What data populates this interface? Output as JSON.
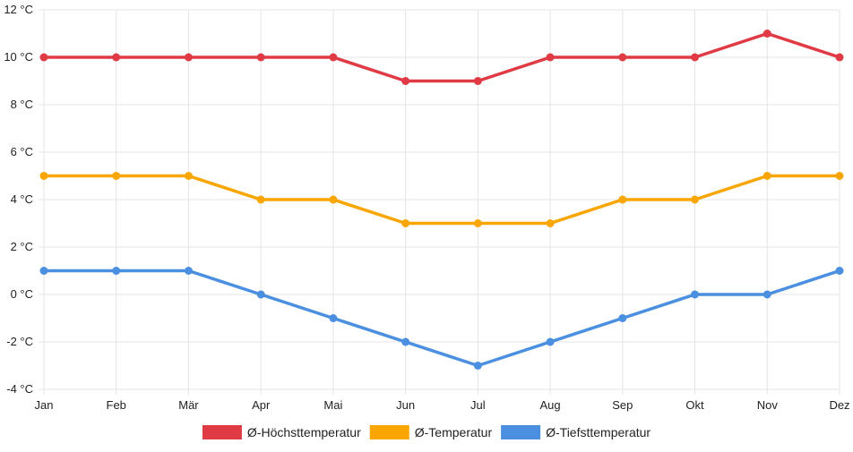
{
  "chart_data": {
    "type": "line",
    "categories": [
      "Jan",
      "Feb",
      "Mär",
      "Apr",
      "Mai",
      "Jun",
      "Jul",
      "Aug",
      "Sep",
      "Okt",
      "Nov",
      "Dez"
    ],
    "y_ticks": [
      "-4 °C",
      "-2 °C",
      "0 °C",
      "2 °C",
      "4 °C",
      "6 °C",
      "8 °C",
      "10 °C",
      "12 °C"
    ],
    "ylim": [
      -4,
      12
    ],
    "y_step": 2,
    "grid": true,
    "legend_position": "bottom",
    "series": [
      {
        "name": "Ø-Höchsttemperatur",
        "color": "#e03a45",
        "values": [
          10,
          10,
          10,
          10,
          10,
          9,
          9,
          10,
          10,
          10,
          11,
          10
        ]
      },
      {
        "name": "Ø-Temperatur",
        "color": "#f9a602",
        "values": [
          5,
          5,
          5,
          4,
          4,
          3,
          3,
          3,
          4,
          4,
          5,
          5
        ]
      },
      {
        "name": "Ø-Tiefsttemperatur",
        "color": "#4a8fe0",
        "values": [
          1,
          1,
          1,
          0,
          -1,
          -2,
          -3,
          -2,
          -1,
          0,
          0,
          1
        ]
      }
    ]
  }
}
